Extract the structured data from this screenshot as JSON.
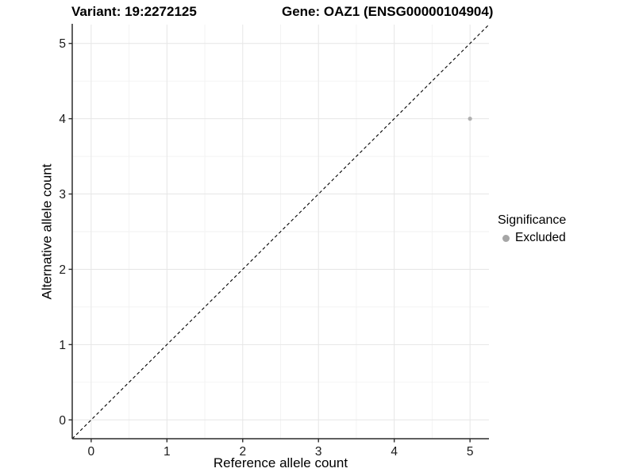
{
  "titles": {
    "variant": "Variant: 19:2272125",
    "gene": "Gene: OAZ1 (ENSG00000104904)"
  },
  "chart_data": {
    "type": "scatter",
    "xlabel": "Reference allele count",
    "ylabel": "Alternative allele count",
    "xlim": [
      -0.25,
      5.25
    ],
    "ylim": [
      -0.25,
      5.25
    ],
    "x_ticks": [
      0,
      1,
      2,
      3,
      4,
      5
    ],
    "y_ticks": [
      0,
      1,
      2,
      3,
      4,
      5
    ],
    "minor_x": [
      0.5,
      1.5,
      2.5,
      3.5,
      4.5
    ],
    "minor_y": [
      0.5,
      1.5,
      2.5,
      3.5,
      4.5
    ],
    "grid": true,
    "points": [
      {
        "x": 5,
        "y": 4,
        "series": "Excluded"
      }
    ],
    "identity_line": {
      "from": [
        -0.25,
        -0.25
      ],
      "to": [
        5.25,
        5.25
      ],
      "style": "dashed"
    },
    "legend": {
      "title": "Significance",
      "position": "right",
      "entries": [
        {
          "label": "Excluded",
          "marker": "circle",
          "color": "#a8a8a8"
        }
      ]
    }
  },
  "colors": {
    "background": "#ffffff",
    "excluded_point": "#b0b0b0",
    "legend_marker": "#a6a6a6",
    "grid_major": "#e6e6e6",
    "grid_minor": "#f2f2f2",
    "axis_line": "#2b2b2b",
    "tick_label": "#1a1a1a",
    "identity_line": "#000000",
    "title_text": "#000000"
  }
}
